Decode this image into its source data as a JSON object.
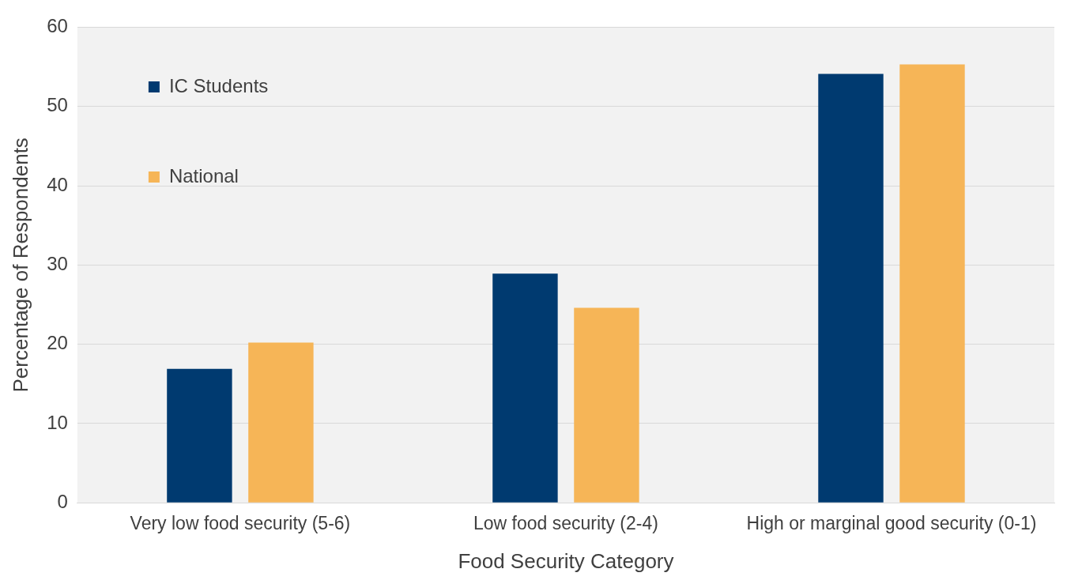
{
  "chart_data": {
    "type": "bar",
    "xlabel": "Food Security Category",
    "ylabel": "Percentage of Respondents",
    "categories": [
      "Very low food security (5-6)",
      "Low food security (2-4)",
      "High or marginal good security (0-1)"
    ],
    "series": [
      {
        "name": "IC Students",
        "color": "#003a70",
        "values": [
          16.9,
          28.9,
          54.1
        ]
      },
      {
        "name": "National",
        "color": "#f6b557",
        "values": [
          20.2,
          24.6,
          55.3
        ]
      }
    ],
    "ylim": [
      0,
      60
    ],
    "yticks": [
      0,
      10,
      20,
      30,
      40,
      50,
      60
    ],
    "grid": "y",
    "legend": "top left"
  }
}
